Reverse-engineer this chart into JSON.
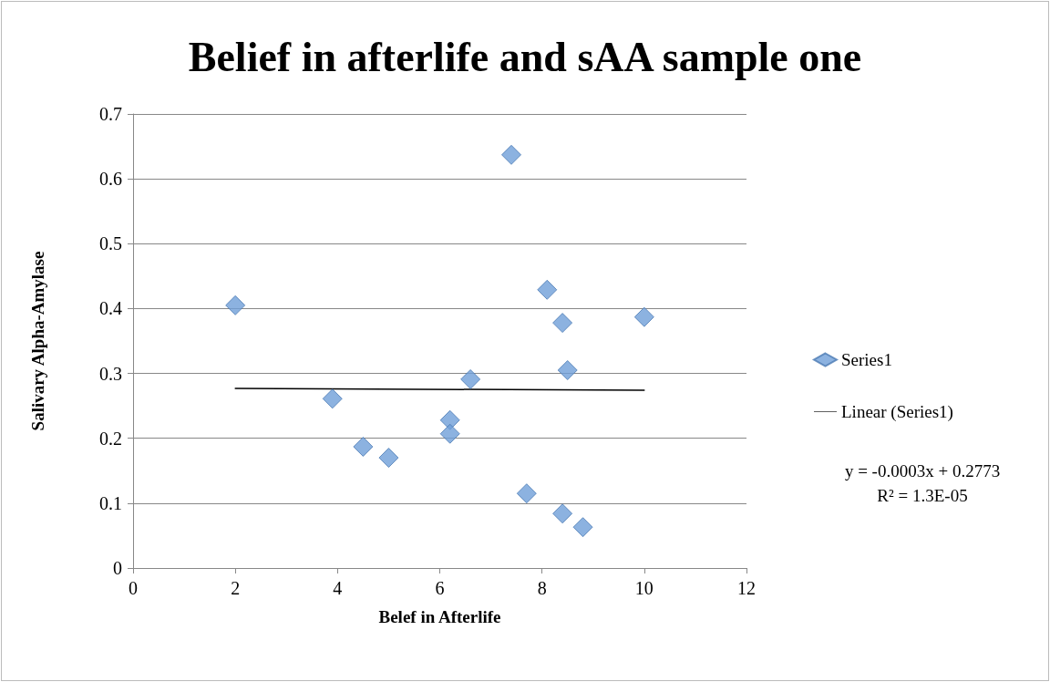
{
  "chart_data": {
    "type": "scatter",
    "title": "Belief in afterlife and sAA sample one",
    "xlabel": "Belef in Afterlife",
    "ylabel": "Salivary Alpha-Amylase",
    "series": [
      {
        "name": "Series1",
        "color": "#6f9fd8",
        "marker": "diamond",
        "x": [
          2,
          3.9,
          4.5,
          5,
          6.2,
          6.2,
          6.6,
          7.4,
          7.7,
          8.1,
          8.4,
          8.5,
          8.4,
          8.8,
          10
        ],
        "values": [
          0.405,
          0.261,
          0.187,
          0.17,
          0.228,
          0.207,
          0.291,
          0.637,
          0.115,
          0.429,
          0.378,
          0.305,
          0.084,
          0.063,
          0.387
        ]
      },
      {
        "name": "Linear (Series1)",
        "type": "line",
        "color": "#000000",
        "marker": "none",
        "line_style": "solid",
        "x": [
          2,
          10
        ],
        "values": [
          0.277,
          0.274
        ]
      }
    ],
    "xlim": [
      0,
      12
    ],
    "xticks": [
      0,
      2,
      4,
      6,
      8,
      10,
      12
    ],
    "ylim": [
      0,
      0.7
    ],
    "yticks": [
      0,
      0.1,
      0.2,
      0.3,
      0.4,
      0.5,
      0.6,
      0.7
    ],
    "grid": "y",
    "legend": "right",
    "annotations": [
      "y = -0.0003x + 0.2773",
      "R² = 1.3E-05"
    ]
  }
}
